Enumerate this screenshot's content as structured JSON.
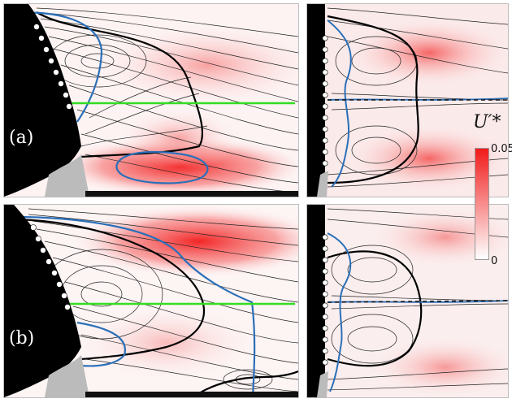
{
  "panels": {
    "a_label": "(a)",
    "b_label": "(b)"
  },
  "colorbar": {
    "symbol": "U′*",
    "max_label": "0.05",
    "min_label": "0",
    "color_high": "#f21a1a",
    "color_low": "#ffffff"
  },
  "colors": {
    "streamline": "#222222",
    "boundary_curve": "#000000",
    "fluctuation_contour": "#2a6fb8",
    "reference_line": "#33dd22",
    "body": "#000000",
    "support": "#bbbbbb"
  }
}
